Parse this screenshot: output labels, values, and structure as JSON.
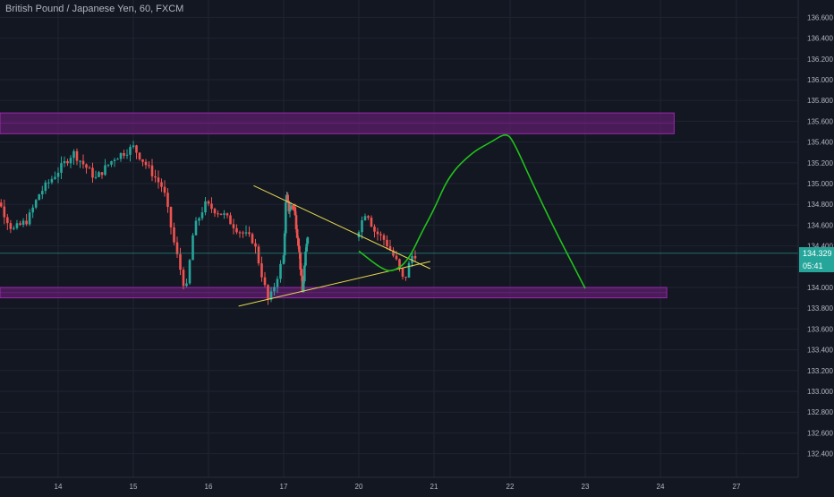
{
  "header": {
    "title": "British Pound / Japanese Yen, 60, FXCM"
  },
  "colors": {
    "background": "#131722",
    "grid": "#1f2433",
    "axis_text": "#b2b5be",
    "up_candle": "#26a69a",
    "down_candle": "#ef5350",
    "zone_fill": "#5c1f6b",
    "zone_border": "#9c27b0",
    "trendline": "#e6d84f",
    "projection": "#21c21a",
    "last_price_line": "#26a69a",
    "price_tag": "#26a69a"
  },
  "price_tag": {
    "price": "134.329",
    "countdown": "05:41"
  },
  "chart_data": {
    "type": "candlestick",
    "title": "British Pound / Japanese Yen, 60, FXCM",
    "ylim": [
      132.3,
      136.95
    ],
    "grid": true,
    "y_ticks": [
      "136.600",
      "136.400",
      "136.200",
      "136.000",
      "135.800",
      "135.600",
      "135.400",
      "135.200",
      "135.000",
      "134.800",
      "134.600",
      "134.400",
      "134.200",
      "134.000",
      "133.800",
      "133.600",
      "133.400",
      "133.200",
      "133.000",
      "132.800",
      "132.600",
      "132.400"
    ],
    "x_ticks": [
      "14",
      "15",
      "16",
      "17",
      "20",
      "21",
      "22",
      "23",
      "24",
      "27"
    ],
    "last_price": 134.329,
    "zones": [
      {
        "name": "resistance-zone",
        "y_low": 135.48,
        "y_high": 135.68,
        "x_from": "13 00:00",
        "x_to": "24 13:00"
      },
      {
        "name": "support-zone",
        "y_low": 133.9,
        "y_high": 134.0,
        "x_from": "13 00:00",
        "x_to": "24 06:00"
      }
    ],
    "trendlines": [
      {
        "name": "upper-trendline",
        "points": [
          [
            16.6,
            134.98
          ],
          [
            20.95,
            134.18
          ]
        ]
      },
      {
        "name": "lower-trendline",
        "points": [
          [
            16.4,
            133.82
          ],
          [
            20.95,
            134.25
          ]
        ]
      }
    ],
    "projection_path": [
      [
        20.0,
        134.35
      ],
      [
        20.3,
        134.18
      ],
      [
        20.45,
        134.15
      ],
      [
        20.65,
        134.25
      ],
      [
        20.85,
        134.55
      ],
      [
        21.0,
        134.75
      ],
      [
        21.2,
        135.08
      ],
      [
        21.5,
        135.3
      ],
      [
        21.75,
        135.4
      ],
      [
        21.95,
        135.49
      ],
      [
        22.05,
        135.4
      ],
      [
        22.3,
        135.0
      ],
      [
        22.6,
        134.55
      ],
      [
        22.85,
        134.2
      ],
      [
        23.0,
        133.99
      ]
    ]
  }
}
